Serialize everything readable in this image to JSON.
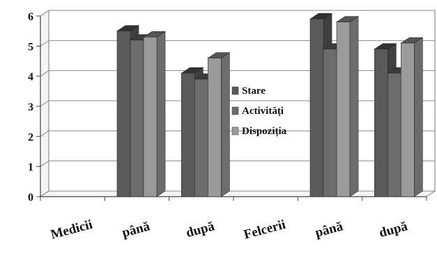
{
  "chart_data": {
    "type": "bar",
    "style": "3d-clustered-column",
    "categories": [
      "Medicii",
      "până",
      "după",
      "Felcerii",
      "până",
      "după"
    ],
    "series": [
      {
        "name": "Stare",
        "values": [
          null,
          5.5,
          4.1,
          null,
          5.9,
          4.9
        ],
        "color": "#5a5a5a"
      },
      {
        "name": "Activități",
        "values": [
          null,
          5.2,
          3.9,
          null,
          4.9,
          4.1
        ],
        "color": "#6c6c6c"
      },
      {
        "name": "Dispoziția",
        "values": [
          null,
          5.3,
          4.6,
          null,
          5.8,
          5.1
        ],
        "color": "#9a9a9a"
      }
    ],
    "y_ticks": [
      "0",
      "1",
      "2",
      "3",
      "4",
      "5",
      "6"
    ],
    "ylim": [
      0,
      6
    ],
    "grid": true,
    "legend_position": "center-right"
  }
}
